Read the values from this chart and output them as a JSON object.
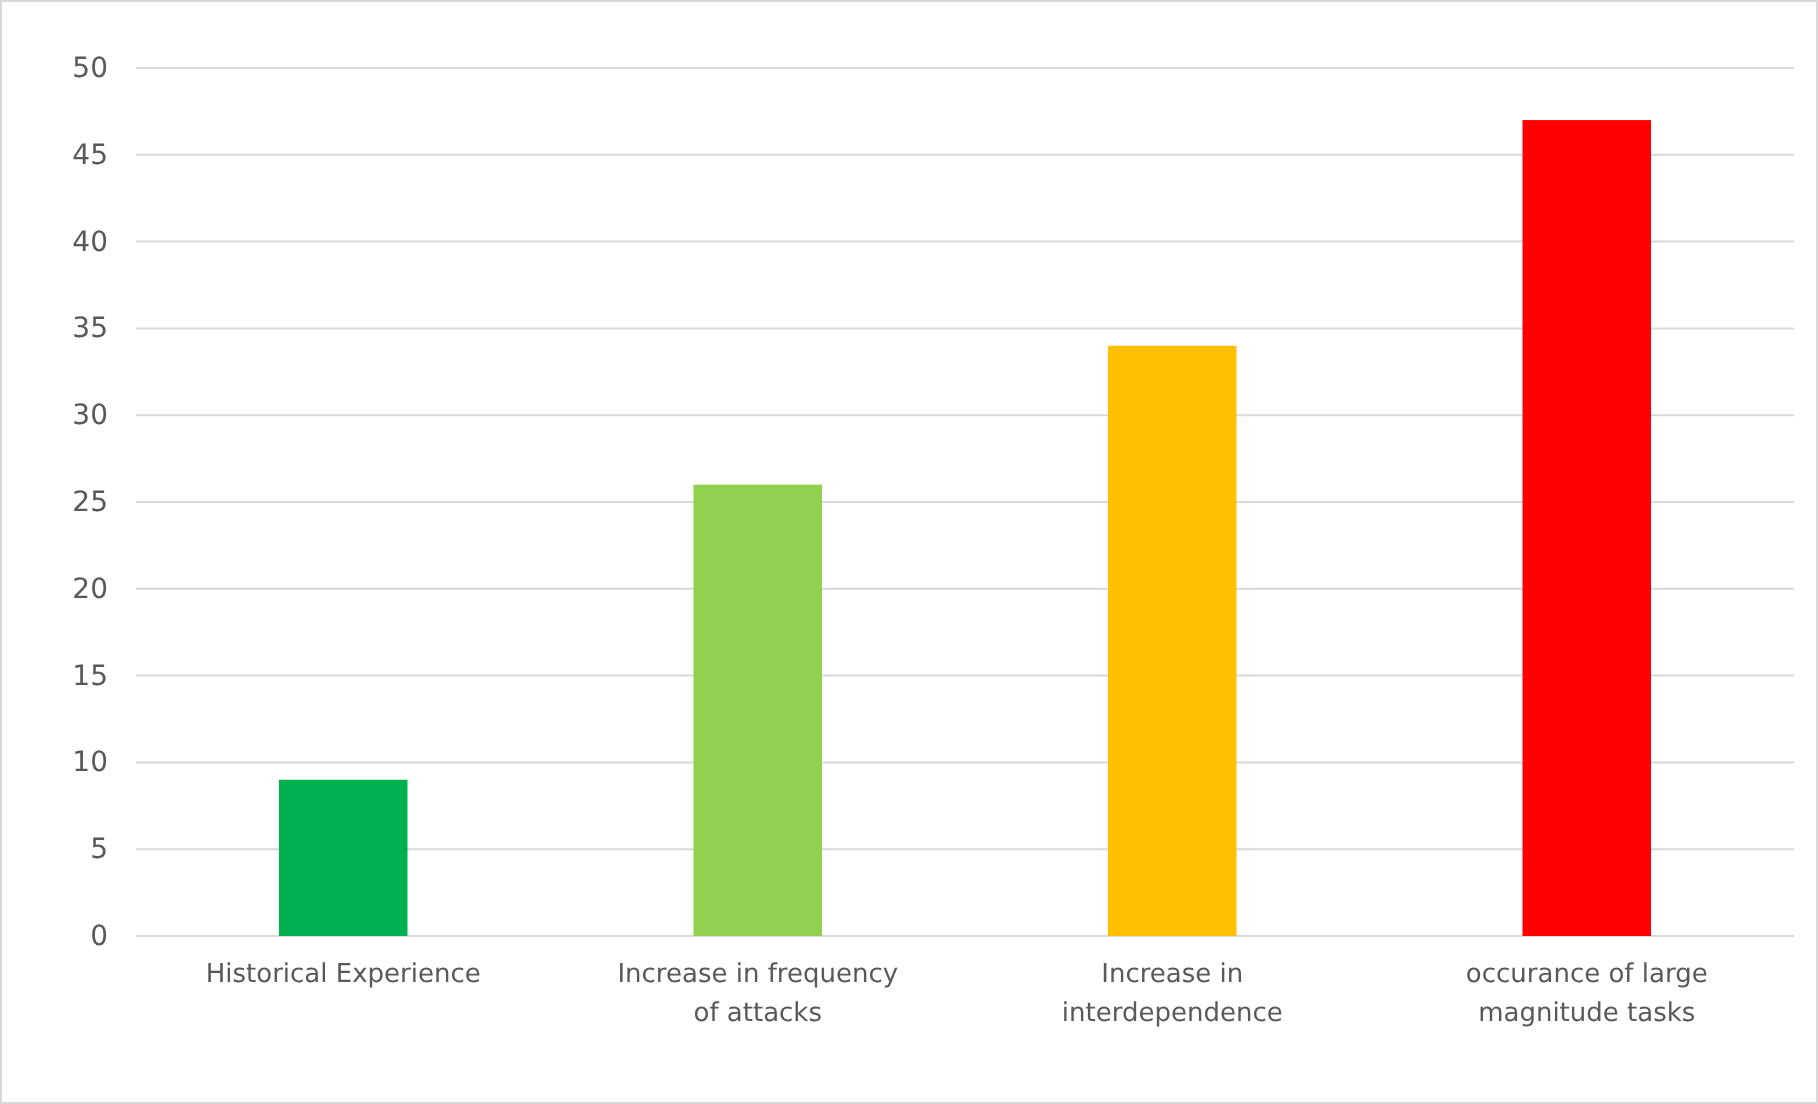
{
  "chart_data": {
    "type": "bar",
    "categories": [
      "Historical Experience",
      "Increase in frequency of attacks",
      "Increase in interdependence",
      "occurance of large magnitude tasks"
    ],
    "values": [
      9,
      26,
      34,
      47
    ],
    "colors": [
      "#00b050",
      "#92d050",
      "#ffc000",
      "#ff0000"
    ],
    "ylim": [
      0,
      50
    ],
    "yticks": [
      0,
      5,
      10,
      15,
      20,
      25,
      30,
      35,
      40,
      45,
      50
    ],
    "grid": "y"
  }
}
